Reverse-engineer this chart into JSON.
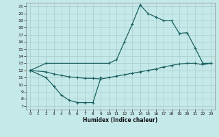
{
  "background_color": "#c5e8e8",
  "grid_color": "#a8cccc",
  "line_color": "#1a6060",
  "xlabel": "Humidex (Indice chaleur)",
  "xlim": [
    -0.5,
    23.5
  ],
  "ylim": [
    6.5,
    21.5
  ],
  "xticks": [
    0,
    1,
    2,
    3,
    4,
    5,
    6,
    7,
    8,
    9,
    10,
    11,
    12,
    13,
    14,
    15,
    16,
    17,
    18,
    19,
    20,
    21,
    22,
    23
  ],
  "yticks": [
    7,
    8,
    9,
    10,
    11,
    12,
    13,
    14,
    15,
    16,
    17,
    18,
    19,
    20,
    21
  ],
  "curve_top_x": [
    0,
    2,
    10,
    11,
    12,
    13,
    14,
    15,
    16,
    17,
    18,
    19,
    20,
    21,
    22,
    23
  ],
  "curve_top_y": [
    12.0,
    13.0,
    13.0,
    13.5,
    16.0,
    18.5,
    21.2,
    20.0,
    19.5,
    19.0,
    19.0,
    17.2,
    17.3,
    15.2,
    13.0,
    13.0
  ],
  "curve_mid_x": [
    0,
    2,
    3,
    4,
    5,
    6,
    7,
    8,
    9,
    10,
    11,
    12,
    13,
    14,
    15,
    16,
    17,
    18,
    19,
    20,
    21,
    22,
    23
  ],
  "curve_mid_y": [
    12.0,
    11.8,
    11.5,
    11.3,
    11.1,
    11.0,
    10.9,
    10.9,
    10.8,
    11.0,
    11.2,
    11.4,
    11.6,
    11.8,
    12.0,
    12.2,
    12.5,
    12.7,
    12.9,
    13.0,
    13.0,
    12.8,
    13.0
  ],
  "curve_bot_x": [
    0,
    2,
    3,
    4,
    5,
    6,
    7,
    8,
    9
  ],
  "curve_bot_y": [
    12.0,
    11.0,
    9.8,
    8.5,
    7.8,
    7.5,
    7.5,
    7.5,
    11.0
  ]
}
